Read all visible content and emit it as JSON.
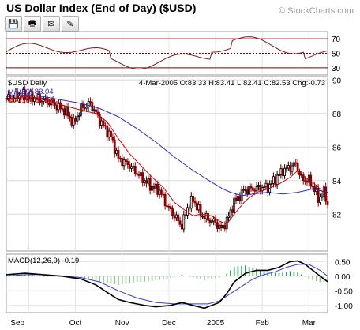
{
  "header": {
    "title": "US Dollar Index (End of Day) ($USD)",
    "watermark": "© StockCharts.com"
  },
  "toolbar": {
    "buttons": [
      {
        "name": "save-icon",
        "glyph": "💾"
      },
      {
        "name": "print-icon",
        "glyph": "🖶"
      },
      {
        "name": "email-icon",
        "glyph": "✉"
      },
      {
        "name": "annotate-icon",
        "glyph": "✎"
      }
    ]
  },
  "chart_data": [
    {
      "type": "line",
      "panel": "rsi",
      "y_ticks": [
        "70",
        "50",
        "30"
      ],
      "levels": [
        70,
        50,
        30
      ],
      "ylim": [
        20,
        80
      ],
      "colors": {
        "line": "#7a1a1a",
        "levels": "#800000",
        "fill": "#b08a6a"
      }
    },
    {
      "type": "candlestick",
      "panel": "price",
      "legend": {
        "symbol_label": "$USD Daily",
        "ma50_label": "MA(50) 83.04",
        "ma10_label": "MA(10) 82.84",
        "ohlc_label": "4-Mar-2005 O:83.33 H:83.41 L:82.41 C:82.53 Chg:-0.73"
      },
      "y_ticks": [
        "90",
        "88",
        "86",
        "84",
        "82"
      ],
      "ylim": [
        79.8,
        90.2
      ],
      "x_ticks": [
        "Sep",
        "Oct",
        "Nov",
        "Dec",
        "2005",
        "Feb",
        "Mar"
      ],
      "close_path": [
        [
          0,
          88.9
        ],
        [
          8,
          89.1
        ],
        [
          16,
          88.9
        ],
        [
          25,
          88.6
        ],
        [
          32,
          88.1
        ],
        [
          36,
          87.4
        ],
        [
          40,
          88.3
        ],
        [
          45,
          88.6
        ],
        [
          50,
          87.6
        ],
        [
          56,
          86.6
        ],
        [
          60,
          85.3
        ],
        [
          66,
          84.9
        ],
        [
          72,
          84.2
        ],
        [
          78,
          83.6
        ],
        [
          82,
          83.4
        ],
        [
          86,
          82.5
        ],
        [
          90,
          81.9
        ],
        [
          94,
          81.3
        ],
        [
          97,
          82.4
        ],
        [
          100,
          82.9
        ],
        [
          104,
          82.0
        ],
        [
          108,
          81.7
        ],
        [
          112,
          81.5
        ],
        [
          115,
          81.1
        ],
        [
          118,
          81.6
        ],
        [
          122,
          82.7
        ],
        [
          127,
          83.4
        ],
        [
          132,
          83.5
        ],
        [
          137,
          83.6
        ],
        [
          140,
          83.6
        ],
        [
          144,
          84.1
        ],
        [
          148,
          84.6
        ],
        [
          152,
          84.8
        ],
        [
          155,
          85.0
        ],
        [
          158,
          84.1
        ],
        [
          162,
          84.0
        ],
        [
          165,
          83.5
        ],
        [
          167,
          82.9
        ],
        [
          170,
          83.3
        ],
        [
          172,
          82.6
        ]
      ],
      "ma10_path": [
        [
          0,
          88.8
        ],
        [
          10,
          89.0
        ],
        [
          20,
          88.9
        ],
        [
          30,
          88.5
        ],
        [
          40,
          88.2
        ],
        [
          48,
          88.0
        ],
        [
          54,
          87.5
        ],
        [
          60,
          86.5
        ],
        [
          66,
          85.6
        ],
        [
          72,
          84.9
        ],
        [
          78,
          84.2
        ],
        [
          84,
          83.6
        ],
        [
          90,
          82.7
        ],
        [
          96,
          82.2
        ],
        [
          100,
          81.9
        ],
        [
          104,
          82.0
        ],
        [
          110,
          81.9
        ],
        [
          114,
          81.6
        ],
        [
          118,
          81.4
        ],
        [
          122,
          82.0
        ],
        [
          128,
          82.8
        ],
        [
          134,
          83.3
        ],
        [
          140,
          83.5
        ],
        [
          146,
          83.8
        ],
        [
          152,
          84.2
        ],
        [
          156,
          84.6
        ],
        [
          160,
          84.2
        ],
        [
          164,
          83.9
        ],
        [
          168,
          83.5
        ],
        [
          172,
          83.0
        ]
      ],
      "ma50_path": [
        [
          0,
          89.0
        ],
        [
          10,
          89.1
        ],
        [
          20,
          89.0
        ],
        [
          30,
          88.8
        ],
        [
          40,
          88.6
        ],
        [
          50,
          88.3
        ],
        [
          60,
          87.8
        ],
        [
          70,
          87.1
        ],
        [
          80,
          86.3
        ],
        [
          90,
          85.4
        ],
        [
          100,
          84.6
        ],
        [
          110,
          83.9
        ],
        [
          116,
          83.5
        ],
        [
          120,
          83.3
        ],
        [
          126,
          83.1
        ],
        [
          132,
          83.2
        ],
        [
          140,
          83.3
        ],
        [
          148,
          83.2
        ],
        [
          156,
          83.3
        ],
        [
          164,
          83.5
        ],
        [
          172,
          83.3
        ]
      ],
      "colors": {
        "up": "#000000",
        "down": "#8b0000",
        "ma50": "#2c2cc2",
        "ma10": "#cc0000",
        "grid": "#d8d8d8"
      }
    },
    {
      "type": "line",
      "panel": "macd",
      "label": "MACD(12,26,9) -0.19",
      "y_ticks": [
        "0.50",
        "0.00",
        "-0.50",
        "-1.00"
      ],
      "ylim": [
        -1.25,
        0.75
      ],
      "macd_path": [
        [
          0,
          0.05
        ],
        [
          10,
          0.1
        ],
        [
          20,
          0.05
        ],
        [
          30,
          0.0
        ],
        [
          40,
          -0.1
        ],
        [
          48,
          -0.3
        ],
        [
          55,
          -0.6
        ],
        [
          60,
          -0.8
        ],
        [
          66,
          -0.9
        ],
        [
          74,
          -1.0
        ],
        [
          80,
          -1.05
        ],
        [
          88,
          -1.0
        ],
        [
          94,
          -0.9
        ],
        [
          100,
          -1.0
        ],
        [
          106,
          -1.1
        ],
        [
          110,
          -1.0
        ],
        [
          114,
          -0.9
        ],
        [
          118,
          -0.6
        ],
        [
          122,
          -0.2
        ],
        [
          128,
          0.1
        ],
        [
          134,
          0.2
        ],
        [
          140,
          0.2
        ],
        [
          146,
          0.3
        ],
        [
          152,
          0.5
        ],
        [
          156,
          0.52
        ],
        [
          160,
          0.4
        ],
        [
          164,
          0.2
        ],
        [
          168,
          0.0
        ],
        [
          172,
          -0.19
        ]
      ],
      "signal_path": [
        [
          0,
          0.0
        ],
        [
          10,
          0.05
        ],
        [
          20,
          0.05
        ],
        [
          30,
          0.0
        ],
        [
          40,
          -0.05
        ],
        [
          50,
          -0.2
        ],
        [
          60,
          -0.5
        ],
        [
          70,
          -0.75
        ],
        [
          80,
          -0.9
        ],
        [
          90,
          -0.95
        ],
        [
          100,
          -0.95
        ],
        [
          108,
          -0.95
        ],
        [
          114,
          -0.85
        ],
        [
          120,
          -0.6
        ],
        [
          126,
          -0.35
        ],
        [
          132,
          -0.1
        ],
        [
          138,
          0.05
        ],
        [
          144,
          0.15
        ],
        [
          150,
          0.3
        ],
        [
          156,
          0.4
        ],
        [
          162,
          0.4
        ],
        [
          168,
          0.2
        ],
        [
          172,
          0.0
        ]
      ],
      "colors": {
        "macd": "#000000",
        "signal": "#3a3ad0",
        "histogram": "#2e8b57",
        "histogram_alt": "#8fbc8f"
      }
    }
  ]
}
